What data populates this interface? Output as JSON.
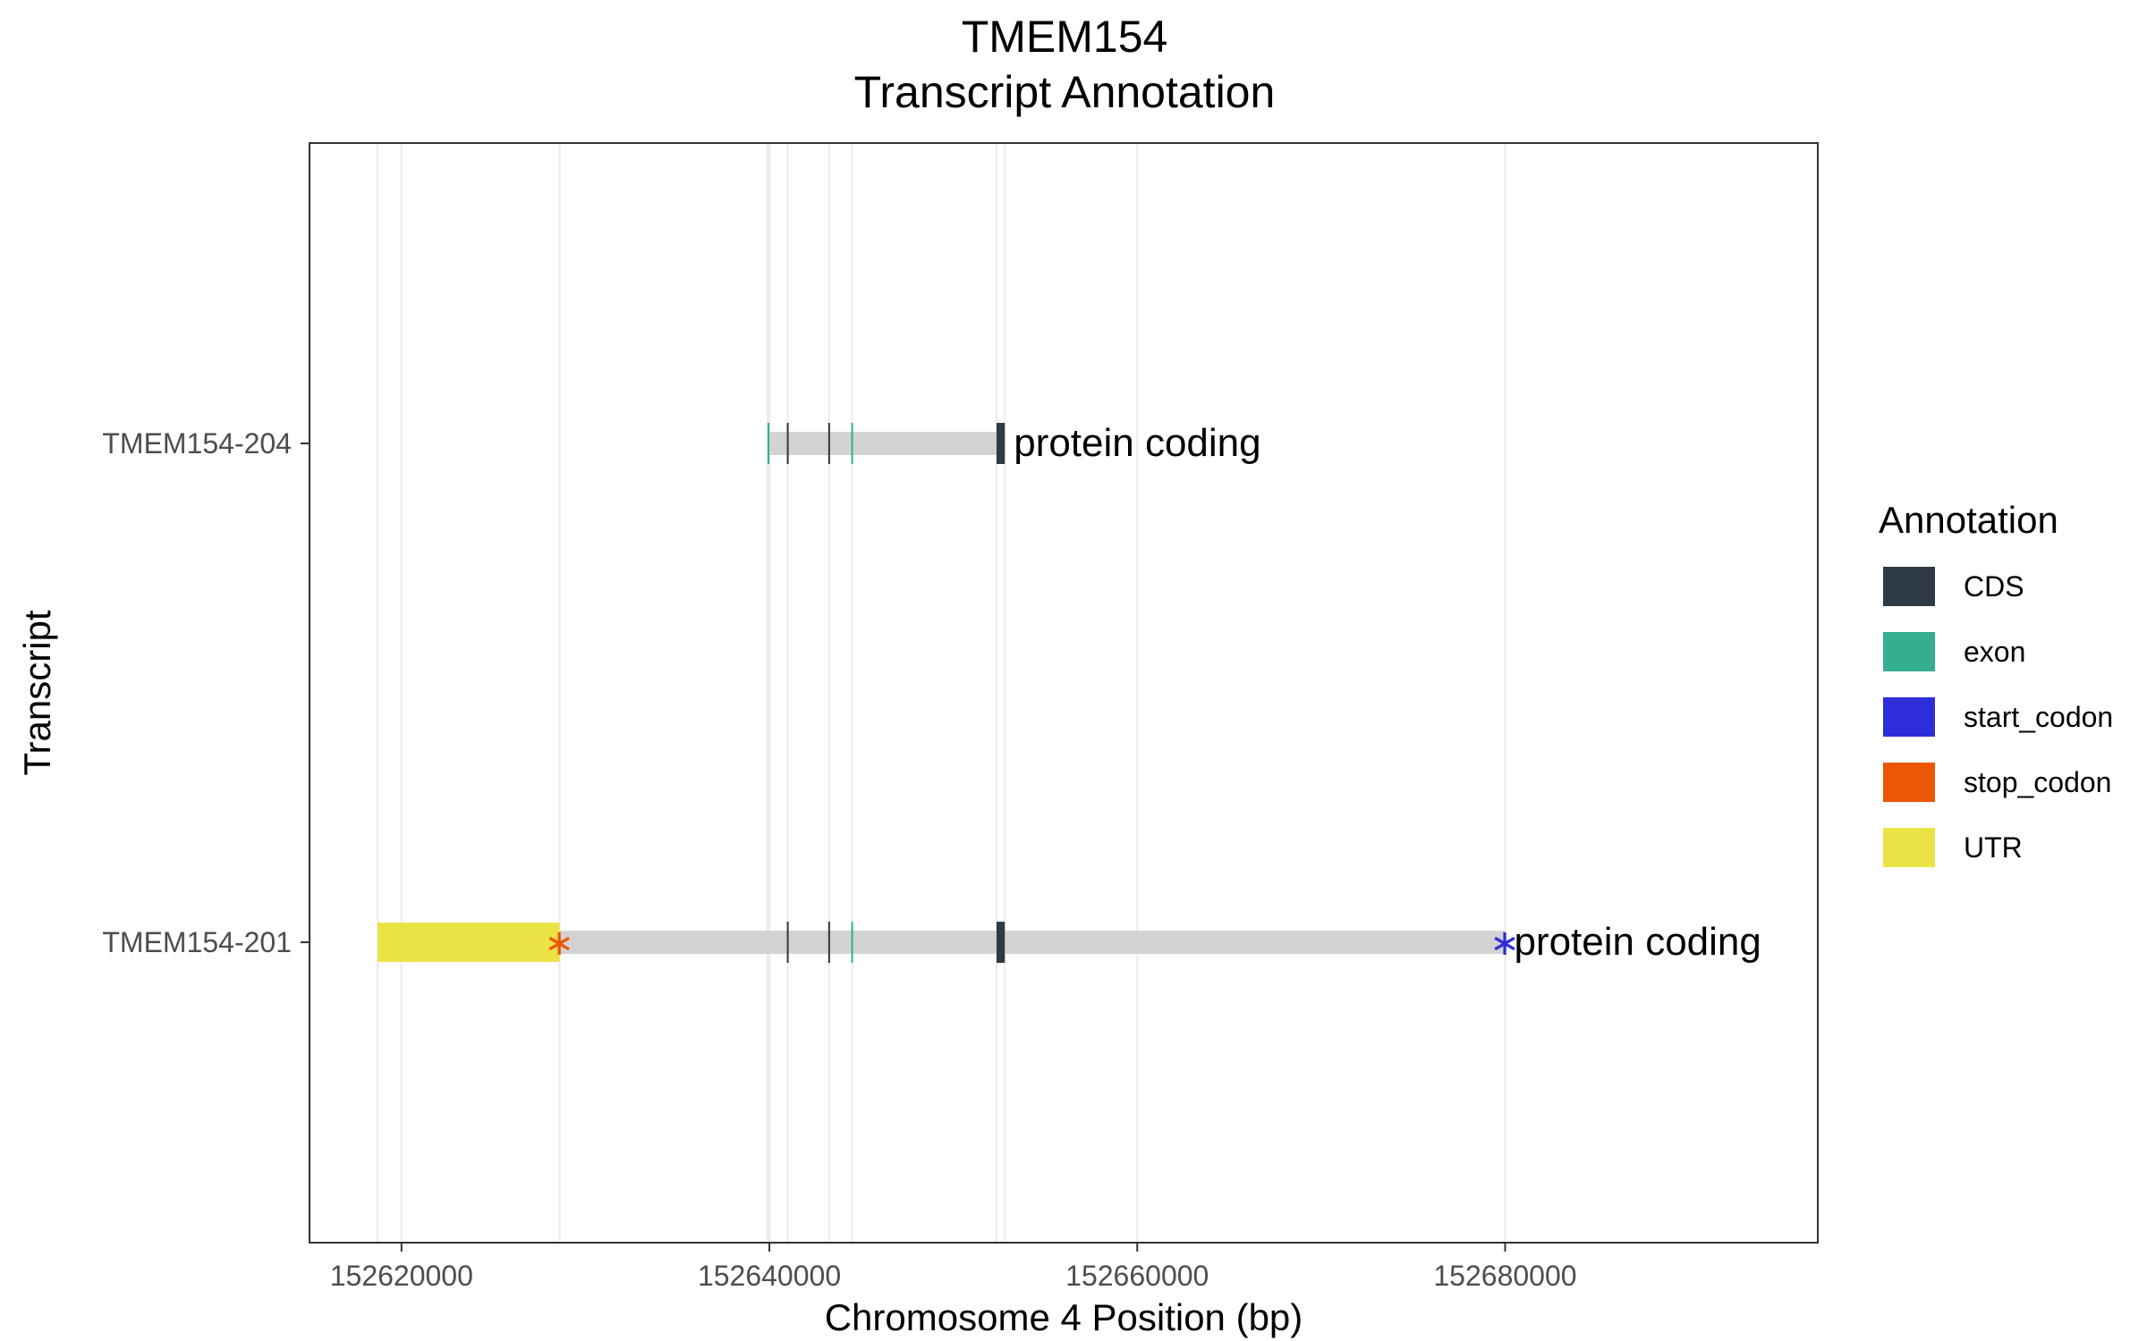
{
  "chart_data": {
    "type": "gene-transcript-annotation",
    "title": "TMEM154",
    "subtitle": "Transcript Annotation",
    "xlabel": "Chromosome 4 Position (bp)",
    "ylabel": "Transcript",
    "xlim": [
      152615000,
      152697000
    ],
    "xticks": [
      152620000,
      152640000,
      152660000,
      152680000
    ],
    "xtick_labels": [
      "152620000",
      "152640000",
      "152660000",
      "152680000"
    ],
    "grid": true,
    "legend_position": "right",
    "legend": {
      "title": "Annotation",
      "entries": [
        {
          "key": "CDS",
          "label": "CDS",
          "color": "#2e3b45"
        },
        {
          "key": "exon",
          "label": "exon",
          "color": "#35ad91"
        },
        {
          "key": "start_codon",
          "label": "start_codon",
          "color": "#2e2ed9"
        },
        {
          "key": "stop_codon",
          "label": "stop_codon",
          "color": "#ed5607"
        },
        {
          "key": "UTR",
          "label": "UTR",
          "color": "#ebe345"
        }
      ]
    },
    "intron_color": "#d3d3d3",
    "transcripts": [
      {
        "name": "TMEM154-204",
        "label": "protein coding",
        "span": [
          152639900,
          152652800
        ],
        "features": [
          {
            "type": "exon",
            "start": 152639900,
            "end": 152640000
          },
          {
            "type": "CDS",
            "start": 152640950,
            "end": 152641050
          },
          {
            "type": "CDS",
            "start": 152643200,
            "end": 152643300
          },
          {
            "type": "exon",
            "start": 152644450,
            "end": 152644550
          },
          {
            "type": "CDS",
            "start": 152652350,
            "end": 152652800
          }
        ]
      },
      {
        "name": "TMEM154-201",
        "label": "protein coding",
        "span": [
          152618700,
          152680000
        ],
        "features": [
          {
            "type": "UTR",
            "start": 152618700,
            "end": 152628600
          },
          {
            "type": "stop_codon",
            "start": 152628550,
            "end": 152628600
          },
          {
            "type": "CDS",
            "start": 152640950,
            "end": 152641050
          },
          {
            "type": "CDS",
            "start": 152643200,
            "end": 152643300
          },
          {
            "type": "exon",
            "start": 152644450,
            "end": 152644550
          },
          {
            "type": "CDS",
            "start": 152652350,
            "end": 152652800
          },
          {
            "type": "start_codon",
            "start": 152679950,
            "end": 152680000
          }
        ]
      }
    ],
    "extra_gridlines_x": [
      152618700,
      152628600,
      152639900,
      152641000,
      152643250,
      152644500,
      152652350,
      152652800,
      152680000
    ]
  }
}
